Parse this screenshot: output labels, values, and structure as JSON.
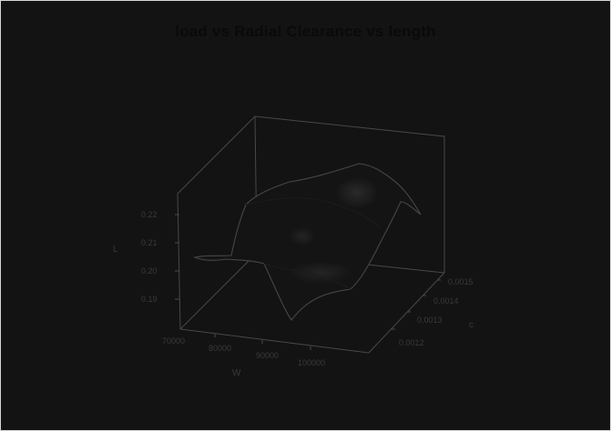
{
  "chart_data": {
    "type": "surface3d",
    "title": "load vs Radial Clearance vs length",
    "xlabel": "W",
    "ylabel": "c",
    "zlabel": "L",
    "x_ticks": [
      "70000",
      "80000",
      "90000",
      "100000"
    ],
    "y_ticks": [
      "0.0012",
      "0.0013",
      "0.0014",
      "0.0015"
    ],
    "z_ticks": [
      "0.19",
      "0.20",
      "0.21",
      "0.22"
    ],
    "xlim": [
      70000,
      100000
    ],
    "ylim": [
      0.00115,
      0.00155
    ],
    "zlim": [
      0.185,
      0.225
    ],
    "grid": false,
    "colors": {
      "background": "#131313",
      "surface": "#141414",
      "edge": "#4a4a4a",
      "text": "#3a3a3a",
      "title": "#0a0a0a"
    }
  }
}
